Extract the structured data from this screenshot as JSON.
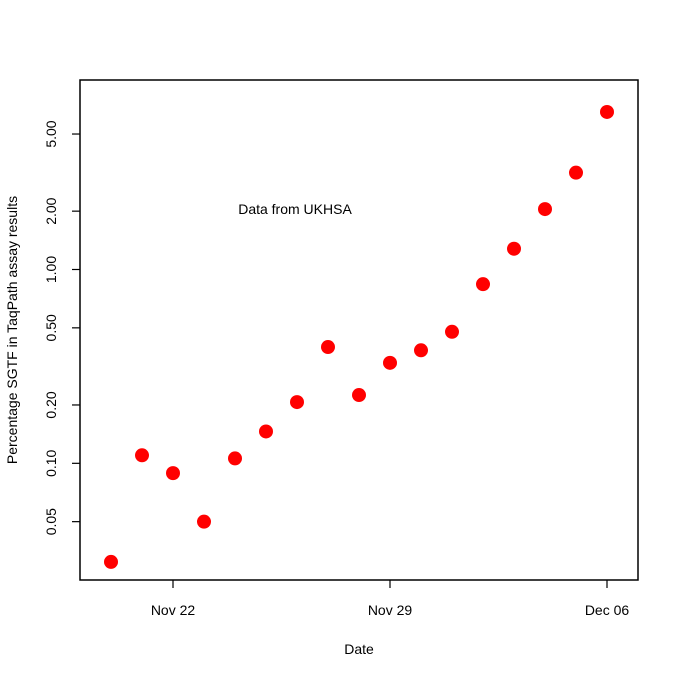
{
  "chart_data": {
    "type": "scatter",
    "xlabel": "Date",
    "ylabel": "Percentage SGTF in TaqPath assay results",
    "annotation": "Data from UKHSA",
    "y_scale": "log",
    "xlim": [
      "2021-11-19",
      "2021-12-07"
    ],
    "ylim": [
      0.025,
      9.5
    ],
    "x_ticks": [
      {
        "date": "2021-11-22",
        "label": "Nov 22"
      },
      {
        "date": "2021-11-29",
        "label": "Nov 29"
      },
      {
        "date": "2021-12-06",
        "label": "Dec 06"
      }
    ],
    "y_ticks": [
      {
        "value": 0.05,
        "label": "0.05"
      },
      {
        "value": 0.1,
        "label": "0.10"
      },
      {
        "value": 0.2,
        "label": "0.20"
      },
      {
        "value": 0.5,
        "label": "0.50"
      },
      {
        "value": 1,
        "label": "1.00"
      },
      {
        "value": 2,
        "label": "2.00"
      },
      {
        "value": 5,
        "label": "5.00"
      }
    ],
    "point_color": "#ff0000",
    "x": [
      "2021-11-20",
      "2021-11-21",
      "2021-11-22",
      "2021-11-23",
      "2021-11-24",
      "2021-11-25",
      "2021-11-26",
      "2021-11-27",
      "2021-11-28",
      "2021-11-29",
      "2021-11-30",
      "2021-12-01",
      "2021-12-02",
      "2021-12-03",
      "2021-12-04",
      "2021-12-05",
      "2021-12-06"
    ],
    "y": [
      0.031,
      0.11,
      0.089,
      0.05,
      0.106,
      0.146,
      0.207,
      0.398,
      0.225,
      0.33,
      0.383,
      0.477,
      0.84,
      1.28,
      2.05,
      3.16,
      6.5
    ]
  }
}
